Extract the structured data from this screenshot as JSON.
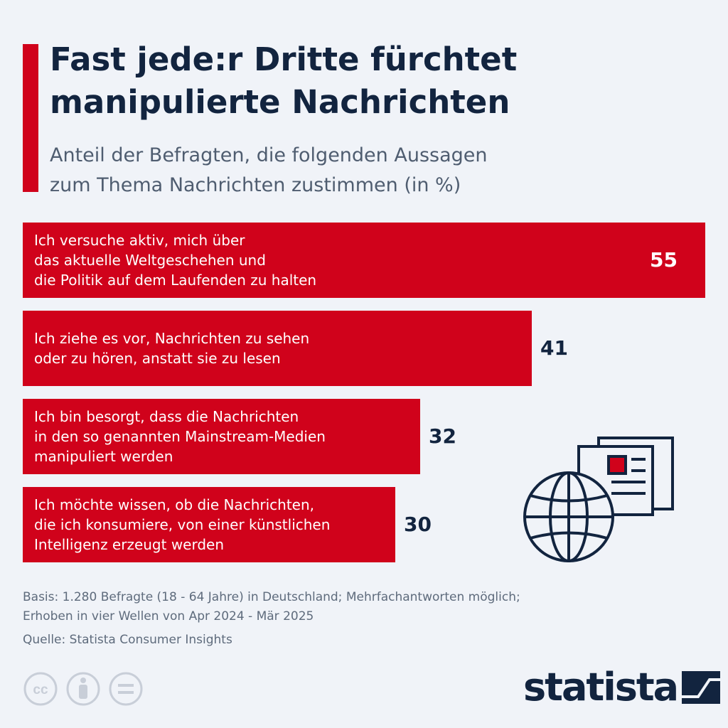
{
  "title_lines": [
    "Fast jede:r Dritte fürchtet",
    "manipulierte Nachrichten"
  ],
  "subtitle_lines": [
    "Anteil der Befragten, die folgenden Aussagen",
    "zum Thema Nachrichten zustimmen (in %)"
  ],
  "colors": {
    "bar": "#d0021b",
    "title": "#12243f",
    "value_inside": "#ffffff",
    "value_outside": "#12243f",
    "background": "#f0f3f8"
  },
  "chart_data": {
    "type": "bar",
    "orientation": "horizontal",
    "title": "Fast jede:r Dritte fürchtet manipulierte Nachrichten",
    "subtitle": "Anteil der Befragten, die folgenden Aussagen zum Thema Nachrichten zustimmen (in %)",
    "categories": [
      [
        "Ich versuche aktiv, mich über",
        "das aktuelle Weltgeschehen und",
        "die Politik auf dem Laufenden zu halten"
      ],
      [
        "Ich ziehe es vor, Nachrichten zu sehen",
        "oder zu hören, anstatt sie zu lesen"
      ],
      [
        "Ich bin besorgt, dass die Nachrichten",
        "in den so genannten Mainstream-Medien",
        "manipuliert werden"
      ],
      [
        "Ich möchte wissen, ob die Nachrichten,",
        "die ich konsumiere, von einer künstlichen",
        "Intelligenz erzeugt werden"
      ]
    ],
    "values": [
      55,
      41,
      32,
      30
    ],
    "xlim": [
      0,
      55
    ],
    "grid": false
  },
  "notes": {
    "basis_lines": [
      "Basis: 1.280 Befragte (18 - 64 Jahre) in Deutschland; Mehrfachantworten möglich;",
      "Erhoben in vier Wellen von Apr 2024 - Mär 2025"
    ],
    "source": "Quelle: Statista Consumer Insights"
  },
  "icons": [
    "creative-commons-icon",
    "attribution-icon",
    "no-derivatives-icon",
    "globe-news-icon"
  ],
  "brand": {
    "name": "statista"
  }
}
